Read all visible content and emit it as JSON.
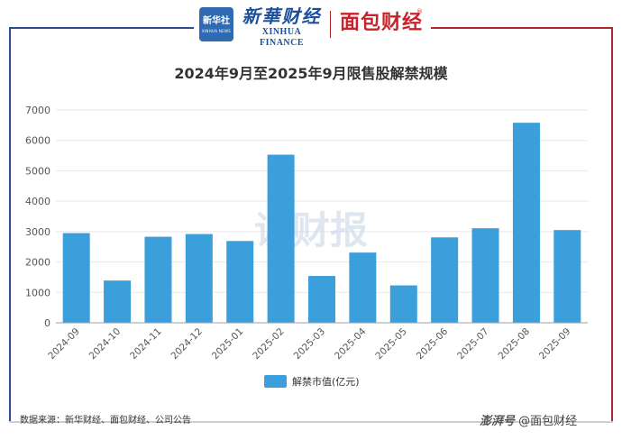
{
  "brand": {
    "xinhua_badge_cn": "新华社",
    "xinhua_badge_en": "XINHUA NEWS",
    "xinhua_finance_cn": "新華财经",
    "xinhua_finance_en": "XINHUA FINANCE",
    "mianbao": "面包财经",
    "registered_mark": "®"
  },
  "watermark": "读财报",
  "source": "数据来源：新华财经、面包财经、公司公告",
  "footer": {
    "platform": "澎湃号",
    "account": "@面包财经"
  },
  "colors": {
    "bar": "#3a9fdb",
    "frame_left": "#2f4b8f",
    "frame_right": "#b3262e",
    "brand_red": "#c9222a",
    "brand_blue": "#1d4f9a"
  },
  "chart_data": {
    "type": "bar",
    "title": "2024年9月至2025年9月限售股解禁规模",
    "categories": [
      "2024-09",
      "2024-10",
      "2024-11",
      "2024-12",
      "2025-01",
      "2025-02",
      "2025-03",
      "2025-04",
      "2025-05",
      "2025-06",
      "2025-07",
      "2025-08",
      "2025-09"
    ],
    "series": [
      {
        "name": "解禁市值(亿元)",
        "values": [
          2950,
          1390,
          2830,
          2920,
          2690,
          5530,
          1540,
          2310,
          1230,
          2810,
          3110,
          6580,
          3050
        ]
      }
    ],
    "ylim": [
      0,
      7000
    ],
    "yticks": [
      0,
      1000,
      2000,
      3000,
      4000,
      5000,
      6000,
      7000
    ],
    "grid": true,
    "legend": "bottom"
  }
}
